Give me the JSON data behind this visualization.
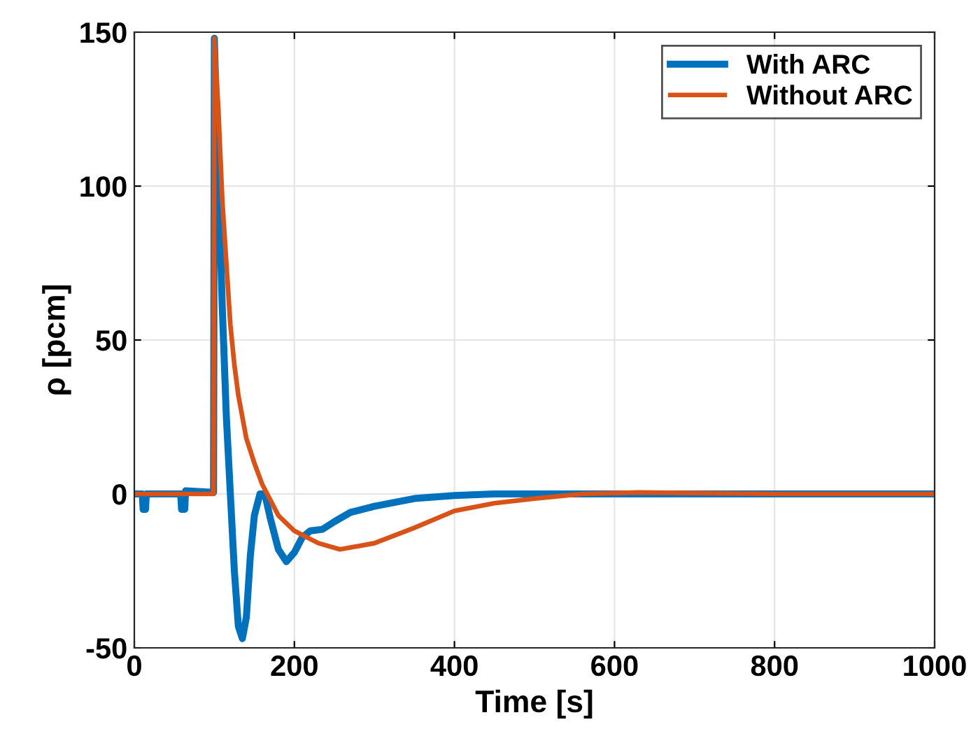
{
  "chart_data": {
    "type": "line",
    "xlabel": "Time [s]",
    "ylabel": "ρ [pcm]",
    "xlim": [
      0,
      1000
    ],
    "ylim": [
      -50,
      150
    ],
    "xticks": [
      0,
      200,
      400,
      600,
      800,
      1000
    ],
    "yticks": [
      -50,
      0,
      50,
      100,
      150
    ],
    "grid": true,
    "legend": "top right",
    "line_style": "solid",
    "marker": "none",
    "series": [
      {
        "name": "With ARC",
        "color": "#0072bd",
        "x": [
          0,
          10,
          11,
          14,
          15,
          58,
          59,
          63,
          64,
          99,
          100,
          103,
          110,
          115,
          120,
          125,
          130,
          135,
          140,
          145,
          150,
          157,
          163,
          170,
          180,
          190,
          200,
          210,
          220,
          235,
          250,
          270,
          300,
          350,
          400,
          450,
          1000
        ],
        "values": [
          0,
          0,
          -5,
          -5,
          0,
          0,
          -5,
          -5,
          1,
          0.5,
          148,
          120,
          60,
          25,
          0,
          -25,
          -43,
          -47,
          -40,
          -20,
          -7,
          0,
          0,
          -8,
          -18,
          -22,
          -19,
          -14,
          -12,
          -11.5,
          -9,
          -6,
          -4,
          -1.5,
          -0.5,
          0,
          0
        ]
      },
      {
        "name": "Without ARC",
        "color": "#d95319",
        "x": [
          0,
          99,
          100,
          105,
          110,
          115,
          120,
          125,
          130,
          140,
          150,
          160,
          170,
          180,
          200,
          230,
          257,
          300,
          350,
          400,
          450,
          500,
          560,
          630,
          800,
          1000
        ],
        "values": [
          0,
          0,
          148,
          125,
          95,
          75,
          55,
          42,
          32,
          18,
          10,
          3,
          -2,
          -7,
          -12,
          -16,
          -18,
          -16,
          -11,
          -5.5,
          -3,
          -1.5,
          0,
          0.5,
          0,
          0
        ]
      }
    ]
  }
}
